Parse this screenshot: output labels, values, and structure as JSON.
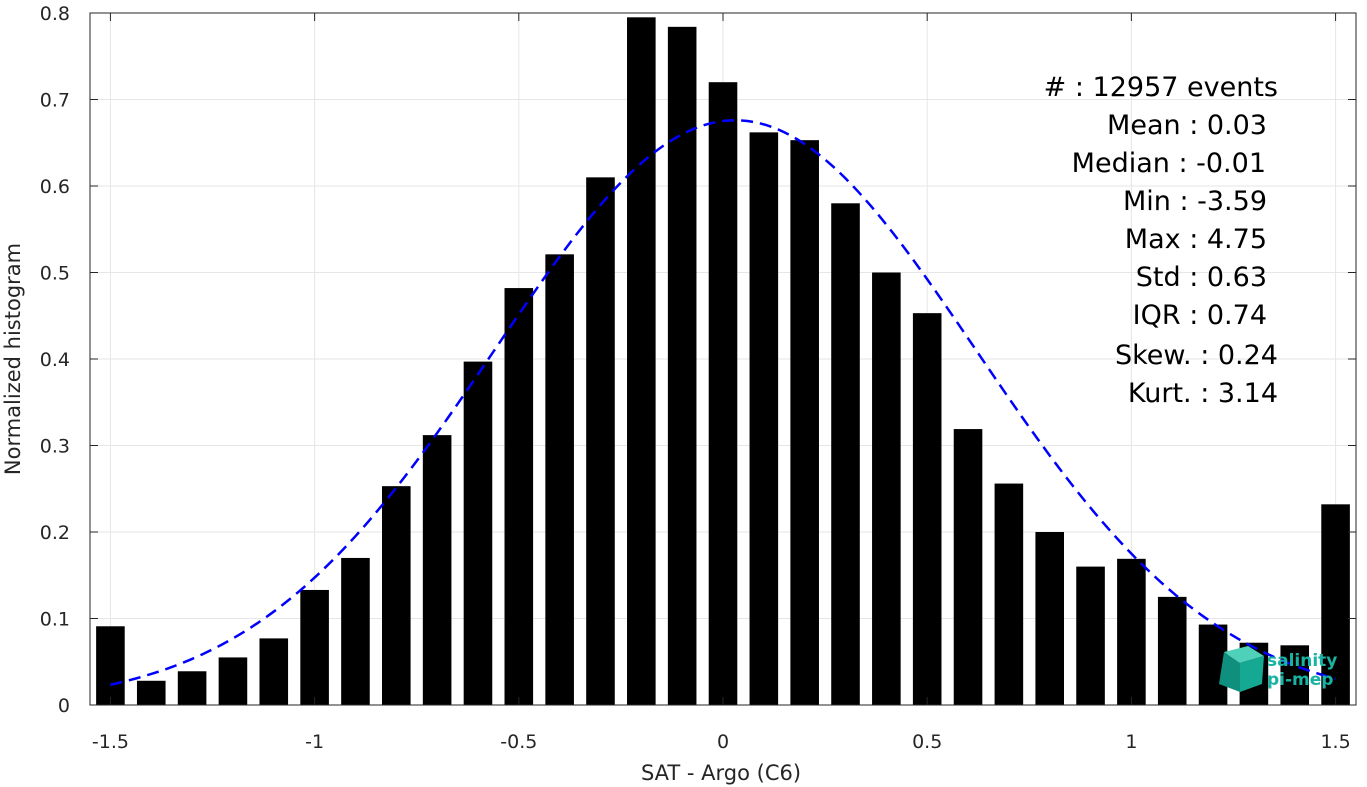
{
  "chart_data": {
    "type": "bar",
    "xlabel": "SAT - Argo (C6)",
    "ylabel": "Normalized histogram",
    "xlim": [
      -1.55,
      1.55
    ],
    "ylim": [
      0,
      0.8
    ],
    "grid": true,
    "x_ticks": [
      -1.5,
      -1,
      -0.5,
      0,
      0.5,
      1,
      1.5
    ],
    "x_tick_labels": [
      "-1.5",
      "-1",
      "-0.5",
      "0",
      "0.5",
      "1",
      "1.5"
    ],
    "y_ticks": [
      0,
      0.1,
      0.2,
      0.3,
      0.4,
      0.5,
      0.6,
      0.7,
      0.8
    ],
    "y_tick_labels": [
      "0",
      "0.1",
      "0.2",
      "0.3",
      "0.4",
      "0.5",
      "0.6",
      "0.7",
      "0.8"
    ],
    "bar_color": "#000000",
    "bars": {
      "x": [
        -1.5,
        -1.4,
        -1.3,
        -1.2,
        -1.1,
        -1.0,
        -0.9,
        -0.8,
        -0.7,
        -0.6,
        -0.5,
        -0.4,
        -0.3,
        -0.2,
        -0.1,
        0.0,
        0.1,
        0.2,
        0.3,
        0.4,
        0.5,
        0.6,
        0.7,
        0.8,
        0.9,
        1.0,
        1.1,
        1.2,
        1.3,
        1.4,
        1.5
      ],
      "values": [
        0.091,
        0.028,
        0.039,
        0.055,
        0.077,
        0.133,
        0.17,
        0.253,
        0.312,
        0.397,
        0.482,
        0.521,
        0.61,
        0.795,
        0.784,
        0.72,
        0.662,
        0.653,
        0.58,
        0.5,
        0.453,
        0.319,
        0.256,
        0.2,
        0.16,
        0.169,
        0.125,
        0.093,
        0.072,
        0.069,
        0.232
      ]
    },
    "fit_curve": {
      "style": "dashed",
      "color": "#0000ff",
      "mean": 0.03,
      "std": 0.59,
      "peak": 0.676,
      "x_range": [
        -1.5,
        1.5
      ]
    },
    "stats": [
      "#  : 12957 events",
      "Mean : 0.03",
      "Median : -0.01",
      "Min : -3.59",
      "Max : 4.75",
      "Std : 0.63",
      "IQR : 0.74",
      "Skew. : 0.24",
      "Kurt. : 3.14"
    ]
  },
  "logo": {
    "line1": "salinity",
    "line2": "pi-mep",
    "color": "#19b3a3"
  }
}
